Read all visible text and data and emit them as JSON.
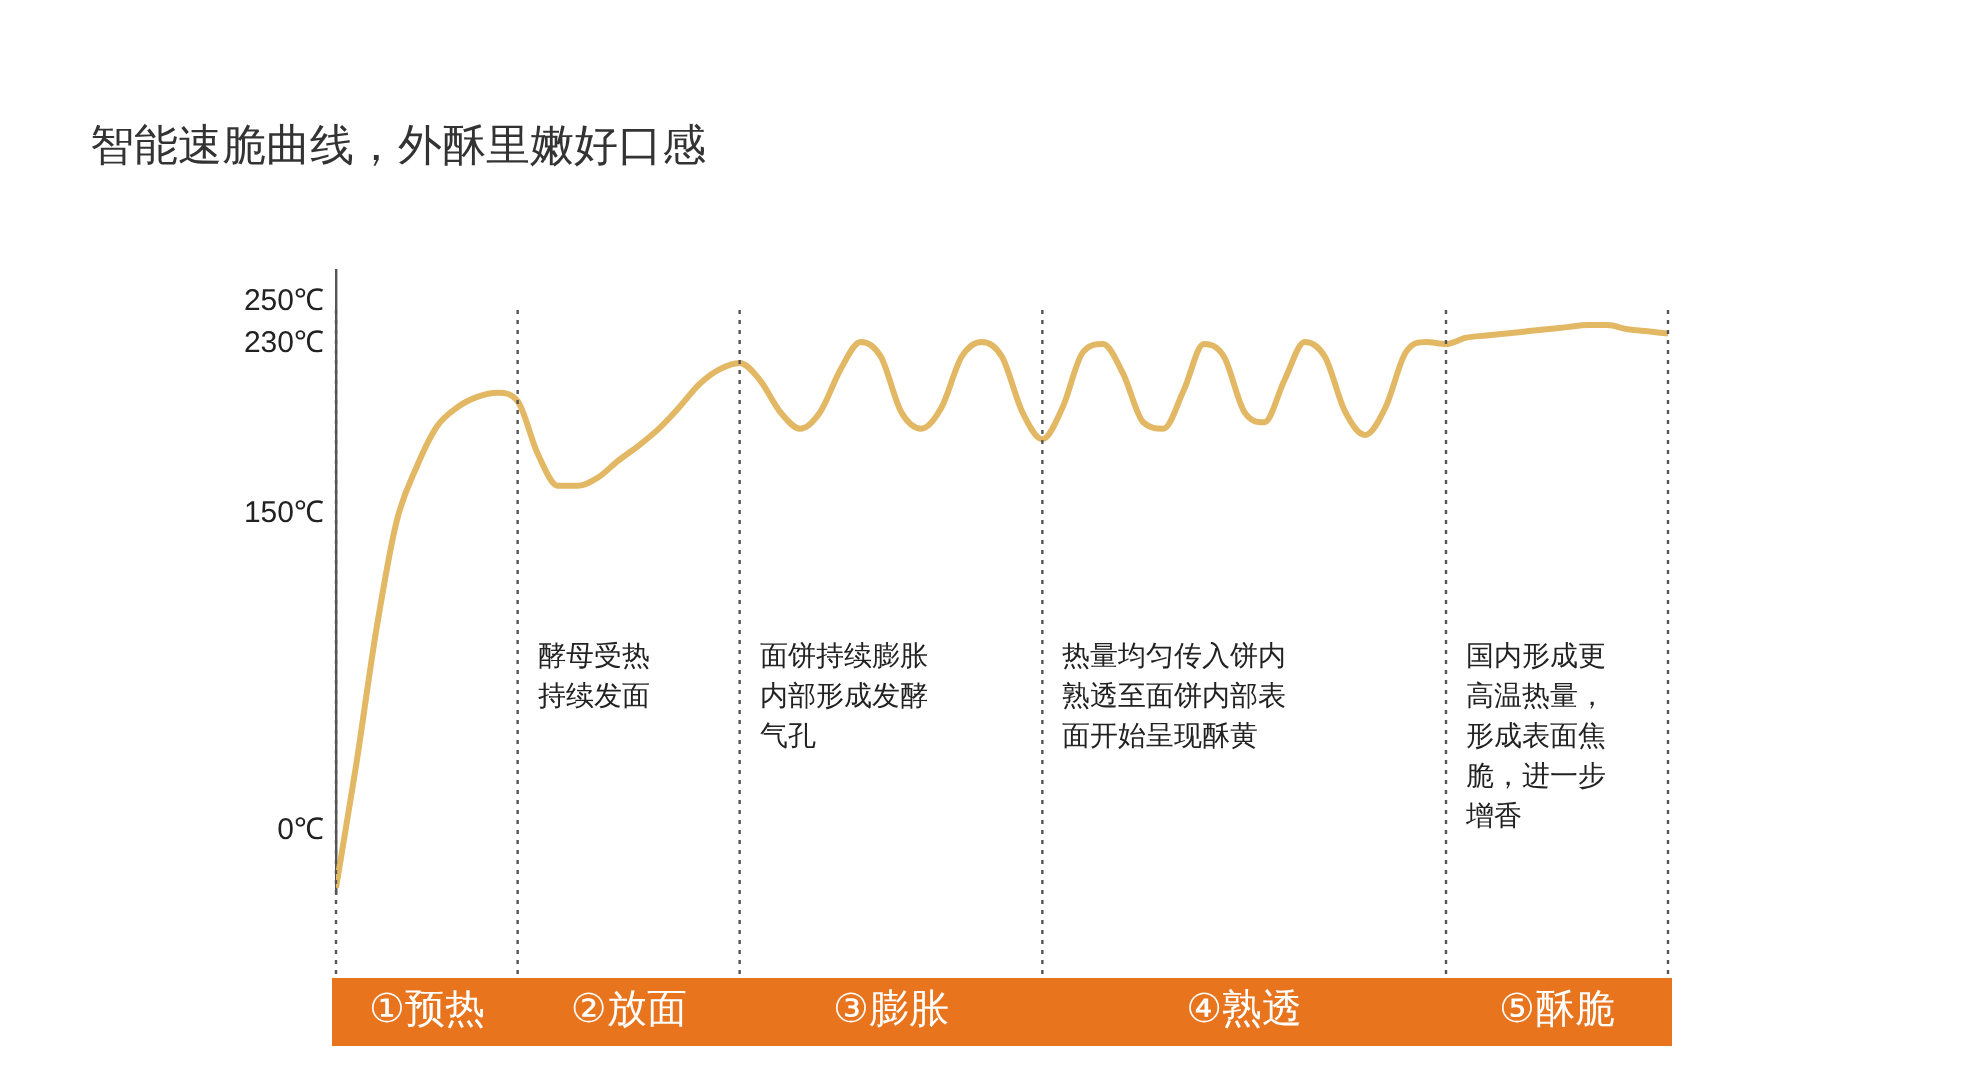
{
  "chart_data": {
    "type": "line",
    "title": "智能速脆曲线，外酥里嫩好口感",
    "categories": [
      null,
      null,
      null,
      null,
      null,
      null,
      null,
      null,
      null,
      null,
      null,
      null,
      null,
      null,
      null,
      null,
      null,
      null,
      null,
      null,
      null,
      null,
      null,
      null,
      null,
      null,
      null,
      null,
      null,
      null,
      null,
      null,
      null,
      null,
      null,
      null,
      null,
      null,
      null,
      null,
      null,
      null,
      null,
      null,
      null,
      null,
      null,
      null,
      null,
      null,
      null,
      null,
      null,
      null,
      null,
      null,
      null,
      null,
      null,
      null,
      null,
      null,
      null,
      null,
      null,
      null,
      null
    ],
    "series": [
      {
        "color": "#e2b864",
        "values": [
          -27,
          31,
          95,
          146,
          172,
          191,
          200,
          205,
          207,
          203,
          178,
          163,
          163,
          167,
          175,
          182,
          190,
          200,
          211,
          218,
          221,
          213,
          198,
          190,
          198,
          218,
          231,
          224,
          198,
          190,
          200,
          224,
          231,
          224,
          198,
          185,
          200,
          226,
          230,
          216,
          193,
          190,
          208,
          230,
          224,
          198,
          193,
          213,
          231,
          224,
          198,
          187,
          200,
          226,
          231,
          230,
          233,
          234,
          235,
          236,
          237,
          238,
          239,
          239,
          237,
          236,
          235
        ]
      }
    ],
    "ylim": [
      -30,
      265
    ],
    "yticks": [
      {
        "value": 0,
        "label": "0℃"
      },
      {
        "value": 150,
        "label": "150℃"
      },
      {
        "value": 230,
        "label": "230℃"
      },
      {
        "value": 250,
        "label": "250℃"
      }
    ],
    "grid": "x",
    "legend": false,
    "marker": "none",
    "line_style": "solid",
    "annotations": [
      "①预热",
      "②放面",
      "③膨胀",
      "④熟透",
      "⑤酥脆",
      "酵母受热持续发面",
      "面饼持续膨胀内部形成发酵气孔",
      "热量均匀传入饼内熟透至面饼内部表面开始呈现酥黄",
      "国内形成更高温热量，形成表面焦脆，进一步增香"
    ]
  }
}
